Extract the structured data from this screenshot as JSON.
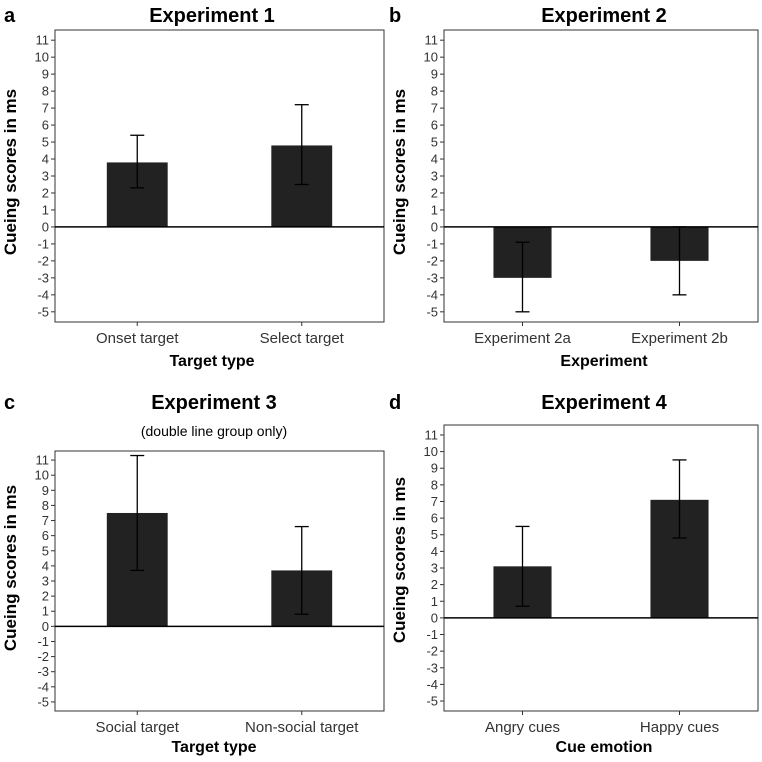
{
  "chart_data": [
    {
      "panel": "a",
      "type": "bar",
      "title": "Experiment 1",
      "subtitle": "",
      "categories": [
        "Onset target",
        "Select target"
      ],
      "values": [
        3.8,
        4.8
      ],
      "error_low": [
        2.3,
        2.5
      ],
      "error_high": [
        5.4,
        7.2
      ],
      "xlabel": "Target type",
      "ylabel": "Cueing scores in ms",
      "ylim": [
        -5.6,
        11.6
      ],
      "yticks": [
        -5,
        -4,
        -3,
        -2,
        -1,
        0,
        1,
        2,
        3,
        4,
        5,
        6,
        7,
        8,
        9,
        10,
        11
      ],
      "bar_color": "#222222"
    },
    {
      "panel": "b",
      "type": "bar",
      "title": "Experiment 2",
      "subtitle": "",
      "categories": [
        "Experiment 2a",
        "Experiment 2b"
      ],
      "values": [
        -3.0,
        -2.0
      ],
      "error_low": [
        -5.0,
        -4.0
      ],
      "error_high": [
        -0.9,
        0.0
      ],
      "xlabel": "Experiment",
      "ylabel": "Cueing scores in ms",
      "ylim": [
        -5.6,
        11.6
      ],
      "yticks": [
        -5,
        -4,
        -3,
        -2,
        -1,
        0,
        1,
        2,
        3,
        4,
        5,
        6,
        7,
        8,
        9,
        10,
        11
      ],
      "bar_color": "#222222"
    },
    {
      "panel": "c",
      "type": "bar",
      "title": "Experiment 3",
      "subtitle": "(double line group only)",
      "categories": [
        "Social target",
        "Non-social target"
      ],
      "values": [
        7.5,
        3.7
      ],
      "error_low": [
        3.7,
        0.8
      ],
      "error_high": [
        11.3,
        6.6
      ],
      "xlabel": "Target type",
      "ylabel": "Cueing scores in ms",
      "ylim": [
        -5.6,
        11.6
      ],
      "yticks": [
        -5,
        -4,
        -3,
        -2,
        -1,
        0,
        1,
        2,
        3,
        4,
        5,
        6,
        7,
        8,
        9,
        10,
        11
      ],
      "bar_color": "#222222"
    },
    {
      "panel": "d",
      "type": "bar",
      "title": "Experiment 4",
      "subtitle": "",
      "categories": [
        "Angry cues",
        "Happy cues"
      ],
      "values": [
        3.1,
        7.1
      ],
      "error_low": [
        0.7,
        4.8
      ],
      "error_high": [
        5.5,
        9.5
      ],
      "xlabel": "Cue emotion",
      "ylabel": "Cueing scores in ms",
      "ylim": [
        -5.6,
        11.6
      ],
      "yticks": [
        -5,
        -4,
        -3,
        -2,
        -1,
        0,
        1,
        2,
        3,
        4,
        5,
        6,
        7,
        8,
        9,
        10,
        11
      ],
      "bar_color": "#222222"
    }
  ]
}
